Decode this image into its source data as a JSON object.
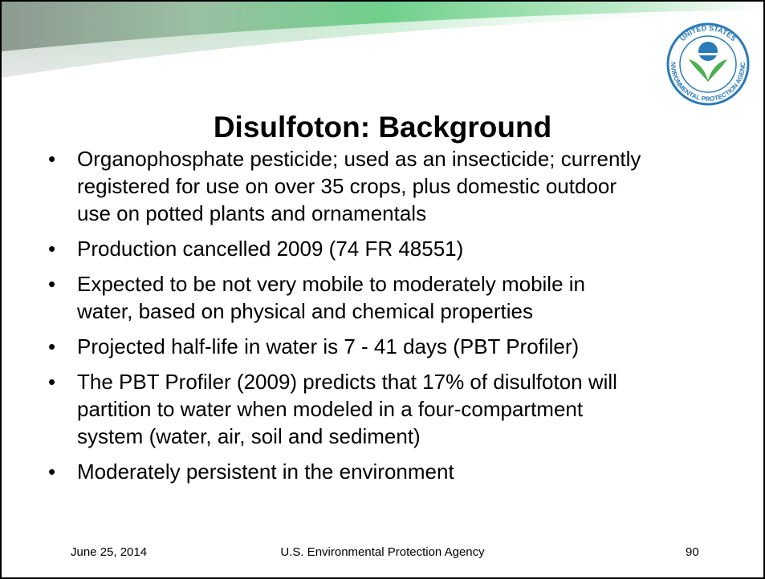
{
  "logo": {
    "top": "UNITED STATES",
    "bottom": "ENVIRONMENTAL PROTECTION AGENCY"
  },
  "title": "Disulfoton: Background",
  "bullets": [
    [
      "Organophosphate pesticide; used as an insecticide; currently",
      "registered for use on over 35 crops, plus domestic outdoor",
      "use on potted plants and ornamentals"
    ],
    [
      "Production cancelled 2009 (74 FR 48551)"
    ],
    [
      "Expected to be not very mobile to moderately mobile in",
      "water, based on physical and chemical properties"
    ],
    [
      "Projected half-life in water is 7 - 41 days (PBT Profiler)"
    ],
    [
      "The PBT Profiler (2009) predicts that 17% of disulfoton will",
      "partition to water when modeled in a four-compartment",
      "system (water, air, soil and sediment)"
    ],
    [
      "Moderately persistent in the environment"
    ]
  ],
  "footer": {
    "date": "June 25, 2014",
    "agency": "U.S. Environmental Protection Agency",
    "page": 90
  }
}
